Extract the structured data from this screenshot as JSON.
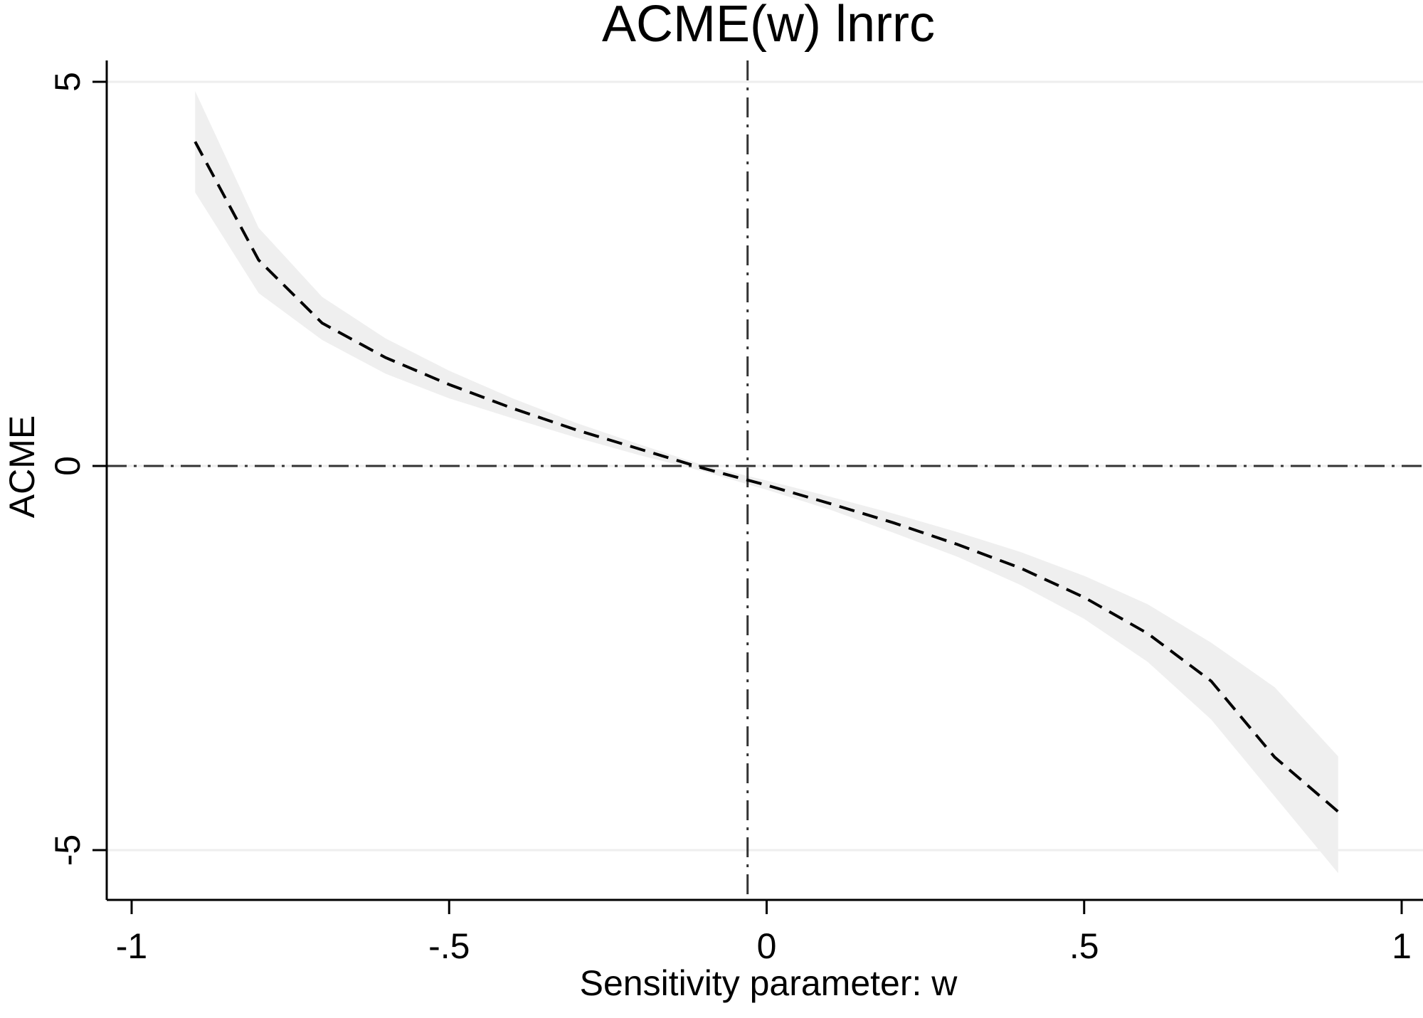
{
  "chart_data": {
    "type": "line",
    "title": "ACME(w) lnrrc",
    "xlabel": "Sensitivity parameter: w",
    "ylabel": "ACME",
    "xlim": [
      -1,
      1
    ],
    "ylim": [
      -5.5,
      5.3
    ],
    "x_ticks": [
      {
        "value": -1,
        "label": "-1"
      },
      {
        "value": -0.5,
        "label": "-.5"
      },
      {
        "value": 0,
        "label": "0"
      },
      {
        "value": 0.5,
        "label": ".5"
      },
      {
        "value": 1,
        "label": "1"
      }
    ],
    "y_ticks": [
      {
        "value": -5,
        "label": "-5"
      },
      {
        "value": 0,
        "label": "0"
      },
      {
        "value": 5,
        "label": "5"
      }
    ],
    "grid": "horizontal",
    "reference_lines": {
      "x": -0.03,
      "y": 0
    },
    "x": [
      -0.9,
      -0.8,
      -0.7,
      -0.6,
      -0.5,
      -0.4,
      -0.3,
      -0.2,
      -0.1,
      0.0,
      0.1,
      0.2,
      0.3,
      0.4,
      0.5,
      0.6,
      0.7,
      0.8,
      0.9
    ],
    "series": [
      {
        "values": [
          4.22,
          2.68,
          1.86,
          1.41,
          1.06,
          0.75,
          0.47,
          0.22,
          -0.03,
          -0.25,
          -0.49,
          -0.74,
          -1.02,
          -1.33,
          -1.71,
          -2.18,
          -2.8,
          -3.79,
          -4.5
        ]
      }
    ],
    "ci_band": {
      "upper": [
        4.88,
        3.1,
        2.2,
        1.66,
        1.24,
        0.88,
        0.56,
        0.28,
        0.01,
        -0.19,
        -0.4,
        -0.62,
        -0.86,
        -1.12,
        -1.43,
        -1.8,
        -2.3,
        -2.88,
        -3.78
      ],
      "lower": [
        3.56,
        2.25,
        1.64,
        1.2,
        0.88,
        0.62,
        0.37,
        0.14,
        -0.07,
        -0.31,
        -0.57,
        -0.87,
        -1.18,
        -1.55,
        -1.99,
        -2.55,
        -3.3,
        -4.3,
        -5.3
      ]
    },
    "colors": {
      "line": "#000000",
      "band": "#efefef",
      "grid": "#eeeeee",
      "refline": "#333333"
    }
  }
}
